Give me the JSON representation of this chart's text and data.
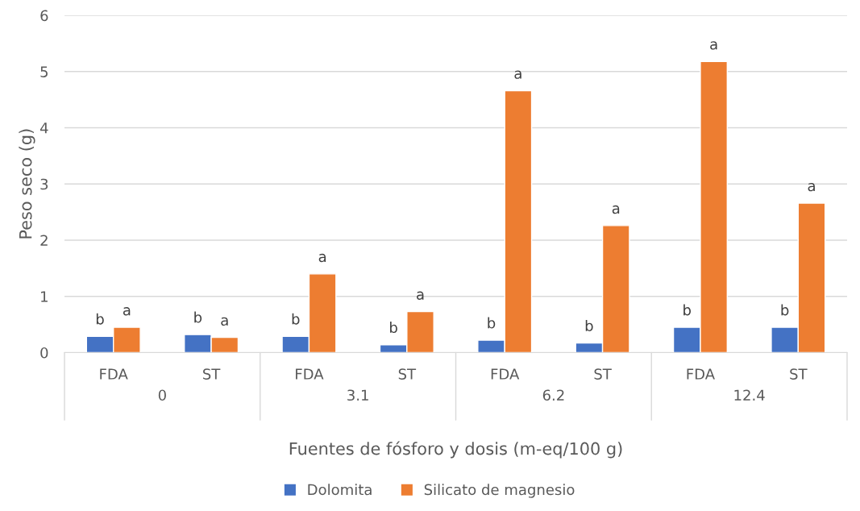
{
  "chart_data": {
    "type": "bar",
    "xlabel": "Fuentes de fósforo y dosis (m-eq/100 g)",
    "ylabel": "Peso seco (g)",
    "categories": [
      "FDA",
      "ST",
      "FDA",
      "ST",
      "FDA",
      "ST",
      "FDA",
      "ST"
    ],
    "series": [
      {
        "name": "Dolomita",
        "color": "#4472c4",
        "values": [
          0.29,
          0.32,
          0.29,
          0.14,
          0.22,
          0.17,
          0.45,
          0.45
        ],
        "value_labels": [
          "b",
          "b",
          "b",
          "b",
          "b",
          "b",
          "b",
          "b"
        ]
      },
      {
        "name": "Silicato de magnesio",
        "color": "#ed7d31",
        "values": [
          0.45,
          0.27,
          1.4,
          0.73,
          4.66,
          2.26,
          5.18,
          2.66
        ],
        "value_labels": [
          "a",
          "a",
          "a",
          "a",
          "a",
          "a",
          "a",
          "a"
        ]
      }
    ],
    "annotations": [
      "0",
      "3.1",
      "6.2",
      "12.4"
    ],
    "ylim": [
      0,
      6
    ],
    "yticks": [
      0,
      1,
      2,
      3,
      4,
      5,
      6
    ],
    "grid": "y",
    "legend": "bottom"
  }
}
